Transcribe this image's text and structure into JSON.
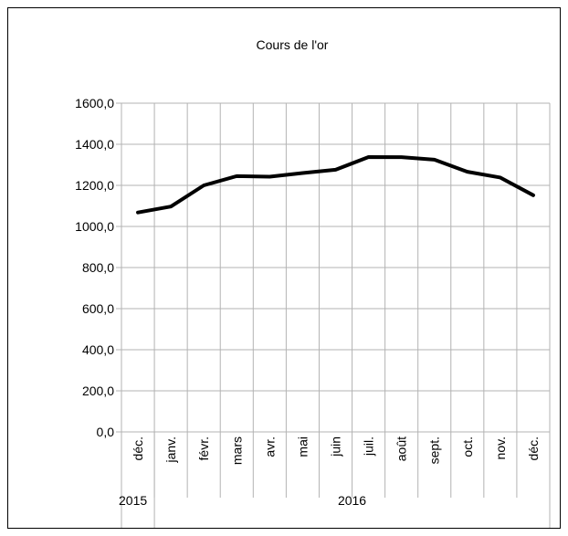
{
  "chart_data": {
    "type": "line",
    "title": "Cours de l'or",
    "groups": [
      {
        "label": "2015",
        "months": [
          "déc."
        ]
      },
      {
        "label": "2016",
        "months": [
          "janv.",
          "févr.",
          "mars",
          "avr.",
          "mai",
          "juin",
          "juil.",
          "août",
          "sept.",
          "oct.",
          "nov.",
          "déc."
        ]
      }
    ],
    "values": [
      1068,
      1097,
      1200,
      1245,
      1242,
      1260,
      1276,
      1338,
      1337,
      1325,
      1266,
      1238,
      1152
    ],
    "color": "#000000",
    "ylim": [
      0,
      1600
    ],
    "yticks": [
      {
        "value": 0,
        "label": "0,0"
      },
      {
        "value": 200,
        "label": "200,0"
      },
      {
        "value": 400,
        "label": "400,0"
      },
      {
        "value": 600,
        "label": "600,0"
      },
      {
        "value": 800,
        "label": "800,0"
      },
      {
        "value": 1000,
        "label": "1000,0"
      },
      {
        "value": 1200,
        "label": "1200,0"
      },
      {
        "value": 1400,
        "label": "1400,0"
      },
      {
        "value": 1600,
        "label": "1600,0"
      }
    ],
    "grid": true
  }
}
